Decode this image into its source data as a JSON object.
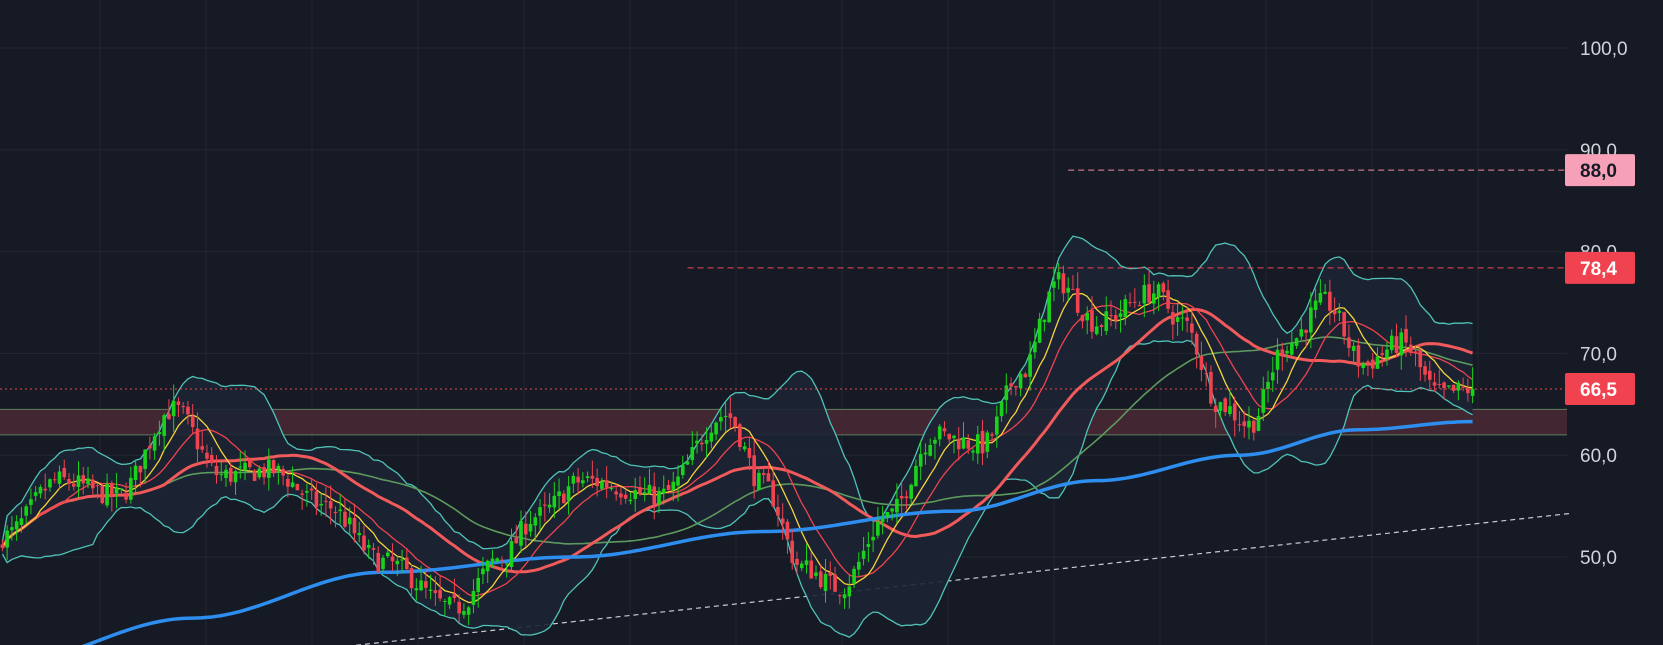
{
  "chart_data": {
    "type": "candlestick",
    "ylim": [
      40,
      105
    ],
    "y_ticks": [
      {
        "value": 50,
        "label": "50,0"
      },
      {
        "value": 60,
        "label": "60,0"
      },
      {
        "value": 70,
        "label": "70,0"
      },
      {
        "value": 80,
        "label": "80,0"
      },
      {
        "value": 90,
        "label": "90,0"
      },
      {
        "value": 100,
        "label": "100,0"
      }
    ],
    "price_tags": [
      {
        "name": "target-88",
        "value": 88.0,
        "label": "88,0",
        "bg": "#f7a1b8",
        "fg": "#161a25",
        "line": "dashed",
        "line_color": "#f58ba4",
        "line_from_bar": 224
      },
      {
        "name": "resistance-78",
        "value": 78.4,
        "label": "78,4",
        "bg": "#f0434f",
        "fg": "#ffffff",
        "line": "dashed",
        "line_color": "#f0434f",
        "line_from_bar": 144
      },
      {
        "name": "last-price",
        "value": 66.5,
        "label": "66,5",
        "bg": "#f0434f",
        "fg": "#ffffff",
        "line": "dotted",
        "line_color": "#f0434f",
        "line_from_bar": 0
      }
    ],
    "support_zone": {
      "low": 62.0,
      "high": 64.5,
      "fill": "#4a2a35",
      "border": "#5e7d5e"
    },
    "trendline": {
      "start_bar": 48,
      "start_value": 40.0,
      "end_bar": 330,
      "end_value": 54.3,
      "color": "#c9ccd4"
    },
    "bar_count": 310,
    "candle_keypoints": [
      [
        0,
        52.0
      ],
      [
        12,
        57.5
      ],
      [
        24,
        56.0
      ],
      [
        36,
        64.5
      ],
      [
        46,
        58.0
      ],
      [
        56,
        58.5
      ],
      [
        68,
        55.0
      ],
      [
        80,
        49.5
      ],
      [
        95,
        45.0
      ],
      [
        105,
        50.0
      ],
      [
        112,
        54.0
      ],
      [
        122,
        57.5
      ],
      [
        138,
        56.0
      ],
      [
        152,
        64.0
      ],
      [
        160,
        57.0
      ],
      [
        168,
        49.0
      ],
      [
        176,
        47.0
      ],
      [
        186,
        54.0
      ],
      [
        196,
        62.0
      ],
      [
        206,
        61.0
      ],
      [
        214,
        68.0
      ],
      [
        222,
        77.0
      ],
      [
        230,
        73.0
      ],
      [
        242,
        76.0
      ],
      [
        248,
        73.0
      ],
      [
        256,
        65.0
      ],
      [
        262,
        63.0
      ],
      [
        270,
        71.0
      ],
      [
        278,
        75.0
      ],
      [
        286,
        69.0
      ],
      [
        294,
        71.0
      ],
      [
        302,
        66.0
      ],
      [
        309,
        66.5
      ]
    ],
    "colors": {
      "up": "#1bd21b",
      "down": "#f0434f",
      "bollinger": "#4fc3b8",
      "bollinger_fill": "#1c2433",
      "ma_fast": "#f5d33b",
      "ma_mid": "#f0434f",
      "ma_slow": "#f05a5a",
      "ma_green": "#5d9a5d",
      "ma_200": "#2d8ef0",
      "grid": "#232735"
    },
    "ma_200_keypoints": [
      [
        0,
        39.5
      ],
      [
        40,
        44.0
      ],
      [
        80,
        48.5
      ],
      [
        120,
        50.0
      ],
      [
        160,
        52.5
      ],
      [
        200,
        54.5
      ],
      [
        230,
        57.5
      ],
      [
        260,
        60.0
      ],
      [
        285,
        62.5
      ],
      [
        309,
        63.3
      ]
    ]
  }
}
